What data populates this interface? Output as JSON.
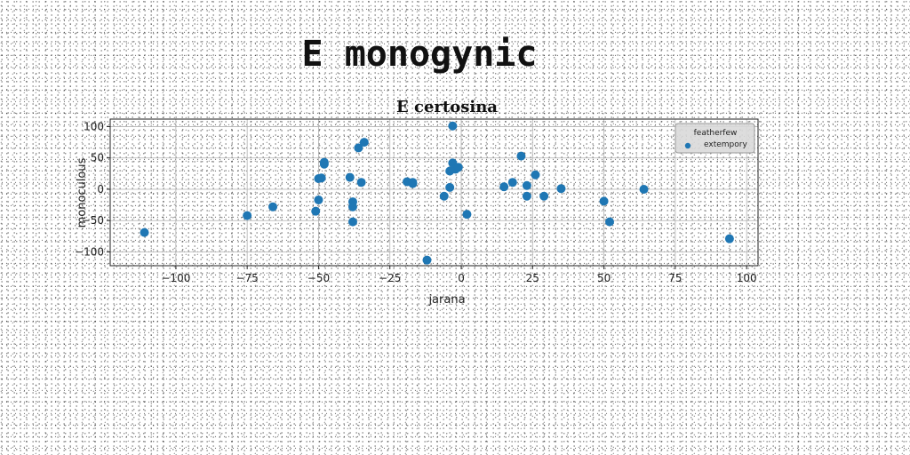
{
  "page": {
    "title": "E monogynic"
  },
  "chart_data": {
    "type": "scatter",
    "title": "E certosina",
    "xlabel": "jarana",
    "ylabel": "monoculous",
    "xlim": [
      -123,
      104
    ],
    "ylim": [
      -122,
      112
    ],
    "xticks": [
      -100,
      -75,
      -50,
      -25,
      0,
      25,
      50,
      75,
      100
    ],
    "yticks": [
      -100,
      -50,
      0,
      50,
      100
    ],
    "grid": true,
    "legend": {
      "title": "featherfew",
      "placement": "top-right"
    },
    "series": [
      {
        "name": "extempory",
        "color": "#1f77b4",
        "points": [
          [
            -111,
            -69
          ],
          [
            -75,
            -42
          ],
          [
            -66,
            -28
          ],
          [
            -51,
            -35
          ],
          [
            -50,
            -17
          ],
          [
            -50,
            17
          ],
          [
            -49,
            18
          ],
          [
            -48,
            40
          ],
          [
            -48,
            43
          ],
          [
            -39,
            19
          ],
          [
            -38,
            -20
          ],
          [
            -38,
            -28
          ],
          [
            -38,
            -52
          ],
          [
            -36,
            66
          ],
          [
            -35,
            11
          ],
          [
            -34,
            75
          ],
          [
            -19,
            12
          ],
          [
            -17,
            9
          ],
          [
            -17,
            11
          ],
          [
            -12,
            -113
          ],
          [
            -6,
            -11
          ],
          [
            -4,
            3
          ],
          [
            -4,
            29
          ],
          [
            -3,
            42
          ],
          [
            -3,
            101
          ],
          [
            -2,
            32
          ],
          [
            -1,
            35
          ],
          [
            2,
            -40
          ],
          [
            15,
            4
          ],
          [
            18,
            11
          ],
          [
            21,
            53
          ],
          [
            23,
            6
          ],
          [
            23,
            -11
          ],
          [
            26,
            23
          ],
          [
            29,
            -11
          ],
          [
            35,
            1
          ],
          [
            50,
            -19
          ],
          [
            52,
            -52
          ],
          [
            64,
            0
          ],
          [
            94,
            -79
          ]
        ]
      }
    ]
  }
}
